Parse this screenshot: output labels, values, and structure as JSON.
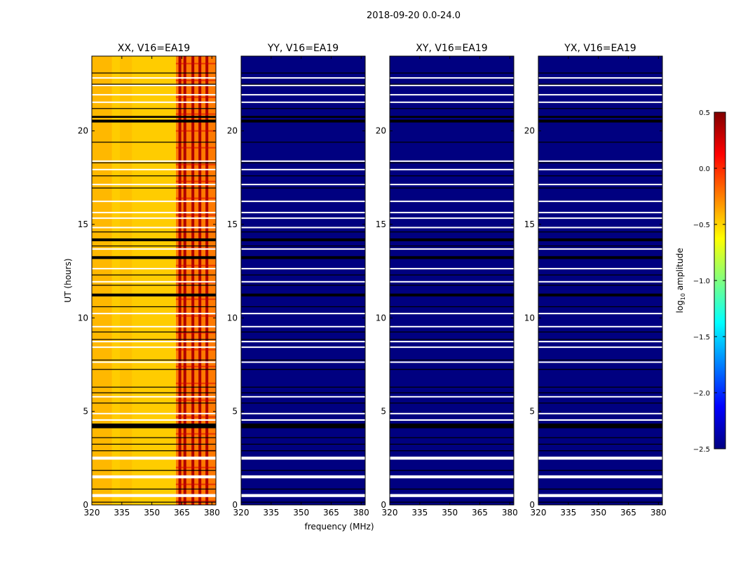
{
  "chart_data": {
    "type": "heatmap",
    "suptitle": "2018-09-20 0.0-24.0",
    "xlabel": "frequency (MHz)",
    "ylabel": "UT (hours)",
    "xlim": [
      320,
      382
    ],
    "ylim": [
      0,
      24
    ],
    "xticks": [
      320,
      335,
      350,
      365,
      380
    ],
    "yticks": [
      0,
      5,
      10,
      15,
      20
    ],
    "panels": [
      {
        "title": "XX, V16=EA19",
        "pol": "XX",
        "level": "high"
      },
      {
        "title": "YY, V16=EA19",
        "pol": "YY",
        "level": "low"
      },
      {
        "title": "XY, V16=EA19",
        "pol": "XY",
        "level": "low"
      },
      {
        "title": "YX, V16=EA19",
        "pol": "YX",
        "level": "low"
      }
    ],
    "colorbar": {
      "label": "log",
      "label_sub": "10",
      "label_suffix": " amplitude",
      "vmin": -2.5,
      "vmax": 0.5,
      "ticks": [
        "0.5",
        "0.0",
        "−0.5",
        "−1.0",
        "−1.5",
        "−2.0",
        "−2.5"
      ],
      "tick_values": [
        0.5,
        0.0,
        -0.5,
        -1.0,
        -1.5,
        -2.0,
        -2.5
      ],
      "colormap": "jet"
    },
    "flagged_white_bands_ut": [
      [
        0.42,
        0.58
      ],
      [
        1.42,
        1.58
      ],
      [
        2.42,
        2.58
      ],
      [
        4.5,
        4.58
      ],
      [
        4.85,
        4.92
      ],
      [
        5.75,
        5.82
      ],
      [
        7.6,
        7.67
      ],
      [
        8.4,
        8.47
      ],
      [
        8.7,
        8.77
      ],
      [
        9.5,
        9.57
      ],
      [
        10.2,
        10.27
      ],
      [
        11.9,
        11.97
      ],
      [
        12.6,
        12.67
      ],
      [
        13.65,
        13.72
      ],
      [
        14.8,
        14.87
      ],
      [
        15.3,
        15.37
      ],
      [
        15.6,
        15.67
      ],
      [
        16.2,
        16.27
      ],
      [
        17.1,
        17.17
      ],
      [
        17.9,
        17.97
      ],
      [
        18.35,
        18.42
      ],
      [
        21.5,
        21.57
      ],
      [
        21.9,
        21.97
      ],
      [
        22.4,
        22.47
      ],
      [
        22.8,
        22.87
      ]
    ],
    "flagged_black_bands_ut": [
      [
        4.1,
        4.35
      ],
      [
        11.15,
        11.3
      ],
      [
        13.15,
        13.3
      ],
      [
        14.1,
        14.25
      ],
      [
        20.45,
        20.6
      ],
      [
        20.7,
        20.8
      ]
    ],
    "thin_black_lines_ut": [
      0.15,
      0.85,
      1.85,
      2.9,
      3.25,
      3.6,
      5.45,
      6.0,
      6.3,
      7.25,
      7.75,
      8.85,
      9.25,
      10.6,
      11.75,
      12.3,
      13.85,
      14.6,
      16.95,
      17.6,
      18.3,
      19.4,
      21.2,
      22.5,
      23.1
    ],
    "xx_structure": {
      "low_freq_region_mhz": [
        320,
        362
      ],
      "high_freq_region_mhz": [
        362,
        382
      ],
      "dark_stripe_freqs_mhz": [
        364.0,
        366.5,
        370.5,
        374.0,
        377.5
      ]
    }
  }
}
